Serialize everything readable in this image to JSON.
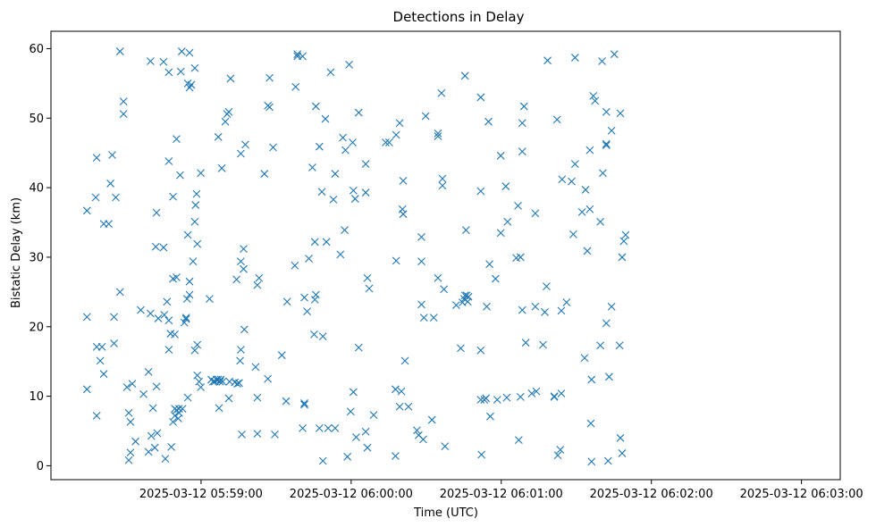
{
  "chart_data": {
    "type": "scatter",
    "title": "Detections in Delay",
    "xlabel": "Time (UTC)",
    "ylabel": "Bistatic Delay (km)",
    "marker": "x",
    "color": "#1f77b4",
    "grid": false,
    "legend": "none",
    "x_time_reference": "2025-03-12 05:58:00",
    "xlim": [
      0.0,
      315.5
    ],
    "ylim": [
      -2.0,
      62.5
    ],
    "x_ticks": [
      {
        "value": 60,
        "label": "2025-03-12 05:59:00"
      },
      {
        "value": 120,
        "label": "2025-03-12 06:00:00"
      },
      {
        "value": 180,
        "label": "2025-03-12 06:01:00"
      },
      {
        "value": 240,
        "label": "2025-03-12 06:02:00"
      },
      {
        "value": 300,
        "label": "2025-03-12 06:03:00"
      }
    ],
    "y_ticks": [
      0,
      10,
      20,
      30,
      40,
      50,
      60
    ],
    "points": [
      [
        14.4,
        36.7
      ],
      [
        14.4,
        21.4
      ],
      [
        14.4,
        11.0
      ],
      [
        17.9,
        38.6
      ],
      [
        18.3,
        44.3
      ],
      [
        18.3,
        17.1
      ],
      [
        18.3,
        7.2
      ],
      [
        19.7,
        15.1
      ],
      [
        20.4,
        17.1
      ],
      [
        21.1,
        34.8
      ],
      [
        21.1,
        13.2
      ],
      [
        23.1,
        34.8
      ],
      [
        23.8,
        40.6
      ],
      [
        24.5,
        44.7
      ],
      [
        25.2,
        21.4
      ],
      [
        25.2,
        17.6
      ],
      [
        25.9,
        38.6
      ],
      [
        27.6,
        25.0
      ],
      [
        27.6,
        59.6
      ],
      [
        29.0,
        52.4
      ],
      [
        29.0,
        50.6
      ],
      [
        30.4,
        11.3
      ],
      [
        31.1,
        7.6
      ],
      [
        31.1,
        0.8
      ],
      [
        31.8,
        6.3
      ],
      [
        31.8,
        1.9
      ],
      [
        32.5,
        11.8
      ],
      [
        33.8,
        3.5
      ],
      [
        35.9,
        22.4
      ],
      [
        37.0,
        10.3
      ],
      [
        39.0,
        13.5
      ],
      [
        39.0,
        2.0
      ],
      [
        39.8,
        58.2
      ],
      [
        39.8,
        21.9
      ],
      [
        40.1,
        4.3
      ],
      [
        40.8,
        8.3
      ],
      [
        41.5,
        2.6
      ],
      [
        41.9,
        31.5
      ],
      [
        42.2,
        11.4
      ],
      [
        42.2,
        36.4
      ],
      [
        42.5,
        4.7
      ],
      [
        42.9,
        21.2
      ],
      [
        45.0,
        58.1
      ],
      [
        45.0,
        31.4
      ],
      [
        45.3,
        21.7
      ],
      [
        45.7,
        1.0
      ],
      [
        46.4,
        23.6
      ],
      [
        47.1,
        20.9
      ],
      [
        47.1,
        16.7
      ],
      [
        47.1,
        56.6
      ],
      [
        47.1,
        43.8
      ],
      [
        47.8,
        19.0
      ],
      [
        48.1,
        2.7
      ],
      [
        48.8,
        38.7
      ],
      [
        48.8,
        26.9
      ],
      [
        48.8,
        6.3
      ],
      [
        49.5,
        8.2
      ],
      [
        49.5,
        7.2
      ],
      [
        49.5,
        18.9
      ],
      [
        50.2,
        27.1
      ],
      [
        50.2,
        8.0
      ],
      [
        50.2,
        47.0
      ],
      [
        50.9,
        6.8
      ],
      [
        51.2,
        7.6
      ],
      [
        51.2,
        8.2
      ],
      [
        51.6,
        41.8
      ],
      [
        51.9,
        56.7
      ],
      [
        52.3,
        59.6
      ],
      [
        52.6,
        8.2
      ],
      [
        53.3,
        20.6
      ],
      [
        54.0,
        21.3
      ],
      [
        54.0,
        21.1
      ],
      [
        54.4,
        24.0
      ],
      [
        54.7,
        9.8
      ],
      [
        54.7,
        33.2
      ],
      [
        54.7,
        55.0
      ],
      [
        55.4,
        59.4
      ],
      [
        55.4,
        54.4
      ],
      [
        55.4,
        24.6
      ],
      [
        55.4,
        26.5
      ],
      [
        56.1,
        54.8
      ],
      [
        56.8,
        29.4
      ],
      [
        57.5,
        57.2
      ],
      [
        57.5,
        35.1
      ],
      [
        57.5,
        16.6
      ],
      [
        57.8,
        37.5
      ],
      [
        58.2,
        39.1
      ],
      [
        58.5,
        31.9
      ],
      [
        58.5,
        17.4
      ],
      [
        58.5,
        13.0
      ],
      [
        59.2,
        12.1
      ],
      [
        59.9,
        11.3
      ],
      [
        59.9,
        42.1
      ],
      [
        63.4,
        24.0
      ],
      [
        64.1,
        12.4
      ],
      [
        64.8,
        12.1
      ],
      [
        65.5,
        12.1
      ],
      [
        66.2,
        12.4
      ],
      [
        66.9,
        12.4
      ],
      [
        66.9,
        47.3
      ],
      [
        67.2,
        8.3
      ],
      [
        67.6,
        12.1
      ],
      [
        67.9,
        12.4
      ],
      [
        68.3,
        42.8
      ],
      [
        68.6,
        12.1
      ],
      [
        69.7,
        49.5
      ],
      [
        70.4,
        50.6
      ],
      [
        71.1,
        50.9
      ],
      [
        71.1,
        9.7
      ],
      [
        71.4,
        12.1
      ],
      [
        71.8,
        55.7
      ],
      [
        73.5,
        12.0
      ],
      [
        74.2,
        26.8
      ],
      [
        74.5,
        11.8
      ],
      [
        75.2,
        11.9
      ],
      [
        75.6,
        15.1
      ],
      [
        75.9,
        44.9
      ],
      [
        75.9,
        29.4
      ],
      [
        75.9,
        16.7
      ],
      [
        76.3,
        4.5
      ],
      [
        77.0,
        28.3
      ],
      [
        77.0,
        31.2
      ],
      [
        77.3,
        19.6
      ],
      [
        77.7,
        46.2
      ],
      [
        81.8,
        14.2
      ],
      [
        82.5,
        26.0
      ],
      [
        82.5,
        9.8
      ],
      [
        82.5,
        4.6
      ],
      [
        83.2,
        27.0
      ],
      [
        85.3,
        42.0
      ],
      [
        86.7,
        51.8
      ],
      [
        86.7,
        12.5
      ],
      [
        87.4,
        55.8
      ],
      [
        87.4,
        51.6
      ],
      [
        88.8,
        45.8
      ],
      [
        89.5,
        4.5
      ],
      [
        92.3,
        15.9
      ],
      [
        94.0,
        9.3
      ],
      [
        94.4,
        23.6
      ],
      [
        97.5,
        28.8
      ],
      [
        97.8,
        54.5
      ],
      [
        98.5,
        58.9
      ],
      [
        98.5,
        59.2
      ],
      [
        100.6,
        58.9
      ],
      [
        100.6,
        5.4
      ],
      [
        101.3,
        9.0
      ],
      [
        101.3,
        8.8
      ],
      [
        101.3,
        24.2
      ],
      [
        102.4,
        22.2
      ],
      [
        103.1,
        29.8
      ],
      [
        104.5,
        42.9
      ],
      [
        105.2,
        18.9
      ],
      [
        105.5,
        23.9
      ],
      [
        105.5,
        32.2
      ],
      [
        105.9,
        51.7
      ],
      [
        105.9,
        24.6
      ],
      [
        107.3,
        45.9
      ],
      [
        107.3,
        5.4
      ],
      [
        108.3,
        39.4
      ],
      [
        108.7,
        18.6
      ],
      [
        108.7,
        0.7
      ],
      [
        109.7,
        49.9
      ],
      [
        110.1,
        32.2
      ],
      [
        110.8,
        5.4
      ],
      [
        111.8,
        56.6
      ],
      [
        112.9,
        38.3
      ],
      [
        113.6,
        5.4
      ],
      [
        113.6,
        42.0
      ],
      [
        115.7,
        30.4
      ],
      [
        116.7,
        47.2
      ],
      [
        117.4,
        33.9
      ],
      [
        117.7,
        45.4
      ],
      [
        118.5,
        1.3
      ],
      [
        119.2,
        57.7
      ],
      [
        119.8,
        7.8
      ],
      [
        120.6,
        46.5
      ],
      [
        120.9,
        39.6
      ],
      [
        120.9,
        10.6
      ],
      [
        121.6,
        38.4
      ],
      [
        122.0,
        4.1
      ],
      [
        123.0,
        17.0
      ],
      [
        123.0,
        50.8
      ],
      [
        125.8,
        4.9
      ],
      [
        125.8,
        43.4
      ],
      [
        125.8,
        39.3
      ],
      [
        126.5,
        2.6
      ],
      [
        126.5,
        27.0
      ],
      [
        127.2,
        25.5
      ],
      [
        129.0,
        7.3
      ],
      [
        133.8,
        46.5
      ],
      [
        135.2,
        46.5
      ],
      [
        137.7,
        1.4
      ],
      [
        137.7,
        11.0
      ],
      [
        138.0,
        29.5
      ],
      [
        138.0,
        47.6
      ],
      [
        139.4,
        49.3
      ],
      [
        139.4,
        8.5
      ],
      [
        140.1,
        10.7
      ],
      [
        140.5,
        36.9
      ],
      [
        140.8,
        36.2
      ],
      [
        140.8,
        41.0
      ],
      [
        141.5,
        15.1
      ],
      [
        142.9,
        8.5
      ],
      [
        146.3,
        5.1
      ],
      [
        147.0,
        4.4
      ],
      [
        148.1,
        29.4
      ],
      [
        148.1,
        32.9
      ],
      [
        148.1,
        23.2
      ],
      [
        148.8,
        3.8
      ],
      [
        149.1,
        21.3
      ],
      [
        149.8,
        50.3
      ],
      [
        152.3,
        6.6
      ],
      [
        153.0,
        21.3
      ],
      [
        154.7,
        27.0
      ],
      [
        154.7,
        47.4
      ],
      [
        154.7,
        47.8
      ],
      [
        156.1,
        53.6
      ],
      [
        156.5,
        41.3
      ],
      [
        156.5,
        40.3
      ],
      [
        157.1,
        25.4
      ],
      [
        157.5,
        2.8
      ],
      [
        162.0,
        23.1
      ],
      [
        163.8,
        16.9
      ],
      [
        164.5,
        23.5
      ],
      [
        165.2,
        24.0
      ],
      [
        165.5,
        24.5
      ],
      [
        165.5,
        56.1
      ],
      [
        165.9,
        33.9
      ],
      [
        166.2,
        24.5
      ],
      [
        166.6,
        23.6
      ],
      [
        166.9,
        24.3
      ],
      [
        171.8,
        53.0
      ],
      [
        171.8,
        39.5
      ],
      [
        171.8,
        9.5
      ],
      [
        171.8,
        16.6
      ],
      [
        172.1,
        1.6
      ],
      [
        173.2,
        9.5
      ],
      [
        173.9,
        9.7
      ],
      [
        174.2,
        22.9
      ],
      [
        174.9,
        49.5
      ],
      [
        175.3,
        29.0
      ],
      [
        175.6,
        7.1
      ],
      [
        177.7,
        26.9
      ],
      [
        178.4,
        9.5
      ],
      [
        179.8,
        44.6
      ],
      [
        179.8,
        33.5
      ],
      [
        181.8,
        40.2
      ],
      [
        182.2,
        9.8
      ],
      [
        182.5,
        35.1
      ],
      [
        186.0,
        29.9
      ],
      [
        186.7,
        37.4
      ],
      [
        187.0,
        3.7
      ],
      [
        187.7,
        30.0
      ],
      [
        187.7,
        9.9
      ],
      [
        188.4,
        22.4
      ],
      [
        188.4,
        45.2
      ],
      [
        188.4,
        49.3
      ],
      [
        189.1,
        51.7
      ],
      [
        189.8,
        17.7
      ],
      [
        192.2,
        10.4
      ],
      [
        193.6,
        36.3
      ],
      [
        193.6,
        22.9
      ],
      [
        194.0,
        10.7
      ],
      [
        196.7,
        17.4
      ],
      [
        197.4,
        22.1
      ],
      [
        198.1,
        25.8
      ],
      [
        198.5,
        58.3
      ],
      [
        201.2,
        10.0
      ],
      [
        201.2,
        9.9
      ],
      [
        202.3,
        49.8
      ],
      [
        202.6,
        1.5
      ],
      [
        203.6,
        2.3
      ],
      [
        204.0,
        22.3
      ],
      [
        204.0,
        10.4
      ],
      [
        204.3,
        41.2
      ],
      [
        206.1,
        23.5
      ],
      [
        208.1,
        40.9
      ],
      [
        208.8,
        33.3
      ],
      [
        209.5,
        43.4
      ],
      [
        209.5,
        58.7
      ],
      [
        212.3,
        36.5
      ],
      [
        213.3,
        15.5
      ],
      [
        213.7,
        39.7
      ],
      [
        214.4,
        30.9
      ],
      [
        215.4,
        45.4
      ],
      [
        215.4,
        36.9
      ],
      [
        215.8,
        6.1
      ],
      [
        216.1,
        0.6
      ],
      [
        216.1,
        12.4
      ],
      [
        216.8,
        53.2
      ],
      [
        217.5,
        52.5
      ],
      [
        219.6,
        17.3
      ],
      [
        219.6,
        35.1
      ],
      [
        220.3,
        58.2
      ],
      [
        220.6,
        42.1
      ],
      [
        222.0,
        46.1
      ],
      [
        222.0,
        46.3
      ],
      [
        222.0,
        50.9
      ],
      [
        222.0,
        20.5
      ],
      [
        222.7,
        0.7
      ],
      [
        223.1,
        12.8
      ],
      [
        224.1,
        48.2
      ],
      [
        224.1,
        22.9
      ],
      [
        225.2,
        59.2
      ],
      [
        227.3,
        17.3
      ],
      [
        227.6,
        50.7
      ],
      [
        227.6,
        4.0
      ],
      [
        228.3,
        30.0
      ],
      [
        228.3,
        1.8
      ],
      [
        229.0,
        32.3
      ],
      [
        229.7,
        33.2
      ]
    ]
  }
}
